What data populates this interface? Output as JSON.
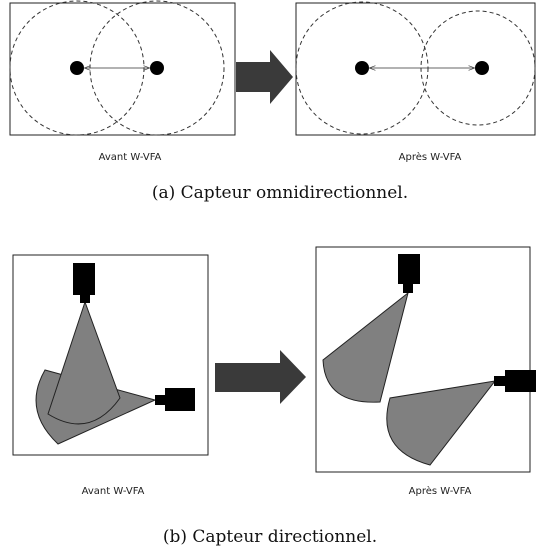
{
  "panel_a": {
    "before_label": "Avant W-VFA",
    "after_label": "Après W-VFA",
    "caption": "(a) Capteur omnidirectionnel."
  },
  "panel_b": {
    "before_label": "Avant W-VFA",
    "after_label": "Après W-VFA",
    "caption": "(b) Capteur directionnel."
  }
}
